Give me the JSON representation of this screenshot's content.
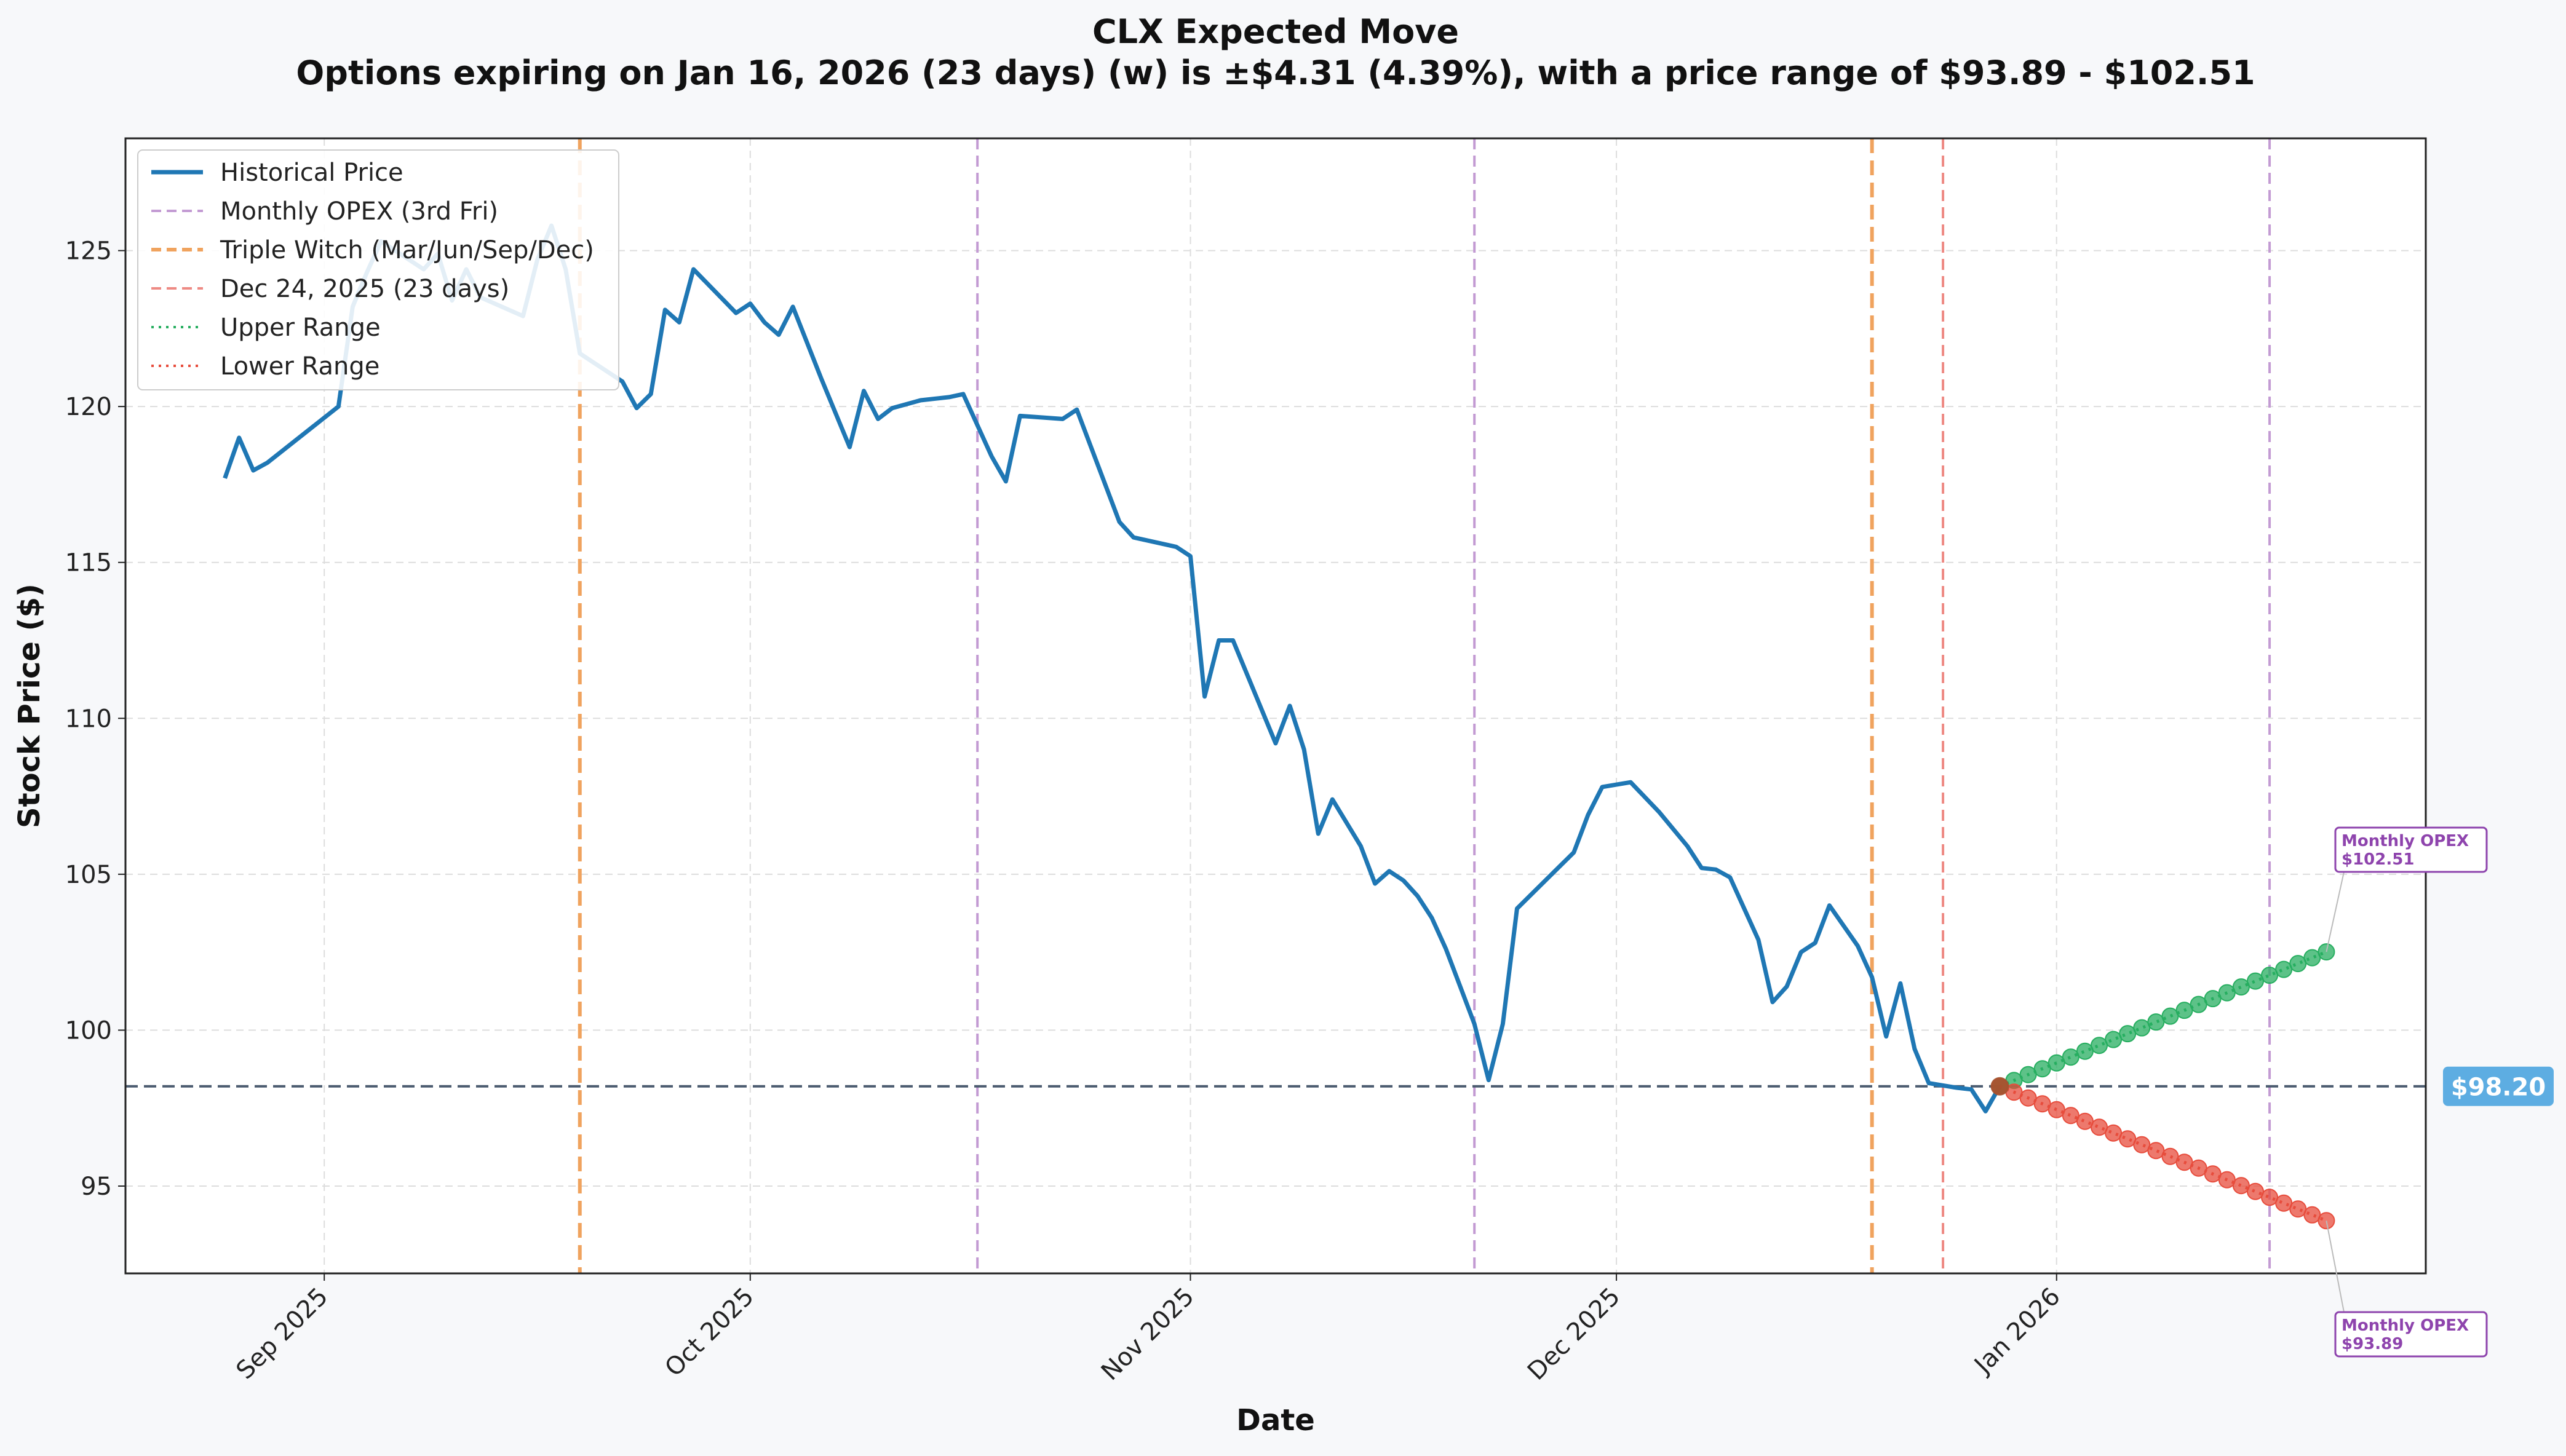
{
  "chart_data": {
    "type": "line",
    "title": "CLX Expected Move",
    "subtitle": "Options expiring on Jan 16, 2026 (23 days) (w) is ±$4.31 (4.39%), with a price range of $93.89 - $102.51",
    "xlabel": "Date",
    "ylabel": "Stock Price ($)",
    "xlim": [
      "2025-08-18",
      "2026-01-27"
    ],
    "ylim": [
      92.2,
      128.6
    ],
    "x_ticks": [
      {
        "date": "2025-09-01",
        "label": "Sep 2025"
      },
      {
        "date": "2025-10-01",
        "label": "Oct 2025"
      },
      {
        "date": "2025-11-01",
        "label": "Nov 2025"
      },
      {
        "date": "2025-12-01",
        "label": "Dec 2025"
      },
      {
        "date": "2026-01-01",
        "label": "Jan 2026"
      }
    ],
    "y_ticks": [
      95,
      100,
      105,
      110,
      115,
      120,
      125
    ],
    "grid": true,
    "legend_position": "upper-left",
    "legend": [
      {
        "label": "Historical Price",
        "style": "solid",
        "color": "#1f77b4"
      },
      {
        "label": "Monthly OPEX (3rd Fri)",
        "style": "dashed",
        "color": "#c39bd3"
      },
      {
        "label": "Triple Witch (Mar/Jun/Sep/Dec)",
        "style": "dashed",
        "color": "#f0a35e"
      },
      {
        "label": "Dec 24, 2025 (23 days)",
        "style": "dashed",
        "color": "#ee8a84"
      },
      {
        "label": "Upper Range",
        "style": "dotted",
        "color": "#27ae60"
      },
      {
        "label": "Lower Range",
        "style": "dotted",
        "color": "#e74c3c"
      }
    ],
    "series": [
      {
        "name": "Historical Price",
        "color": "#1f77b4",
        "points": [
          {
            "x": "2025-08-25",
            "y": 117.7
          },
          {
            "x": "2025-08-26",
            "y": 119.0
          },
          {
            "x": "2025-08-27",
            "y": 117.95
          },
          {
            "x": "2025-08-28",
            "y": 118.2
          },
          {
            "x": "2025-09-02",
            "y": 120.0
          },
          {
            "x": "2025-09-03",
            "y": 123.2
          },
          {
            "x": "2025-09-04",
            "y": 124.3
          },
          {
            "x": "2025-09-05",
            "y": 125.3
          },
          {
            "x": "2025-09-08",
            "y": 124.4
          },
          {
            "x": "2025-09-09",
            "y": 124.9
          },
          {
            "x": "2025-09-10",
            "y": 123.4
          },
          {
            "x": "2025-09-11",
            "y": 124.4
          },
          {
            "x": "2025-09-12",
            "y": 123.5
          },
          {
            "x": "2025-09-15",
            "y": 122.9
          },
          {
            "x": "2025-09-16",
            "y": 124.7
          },
          {
            "x": "2025-09-17",
            "y": 125.8
          },
          {
            "x": "2025-09-18",
            "y": 124.4
          },
          {
            "x": "2025-09-19",
            "y": 121.7
          },
          {
            "x": "2025-09-22",
            "y": 120.8
          },
          {
            "x": "2025-09-23",
            "y": 119.95
          },
          {
            "x": "2025-09-24",
            "y": 120.4
          },
          {
            "x": "2025-09-25",
            "y": 123.1
          },
          {
            "x": "2025-09-26",
            "y": 122.7
          },
          {
            "x": "2025-09-27",
            "y": 124.4
          },
          {
            "x": "2025-09-30",
            "y": 123.0
          },
          {
            "x": "2025-10-01",
            "y": 123.3
          },
          {
            "x": "2025-10-02",
            "y": 122.7
          },
          {
            "x": "2025-10-03",
            "y": 122.3
          },
          {
            "x": "2025-10-04",
            "y": 123.2
          },
          {
            "x": "2025-10-06",
            "y": 120.9
          },
          {
            "x": "2025-10-07",
            "y": 119.8
          },
          {
            "x": "2025-10-08",
            "y": 118.7
          },
          {
            "x": "2025-10-09",
            "y": 120.5
          },
          {
            "x": "2025-10-10",
            "y": 119.6
          },
          {
            "x": "2025-10-11",
            "y": 119.95
          },
          {
            "x": "2025-10-13",
            "y": 120.2
          },
          {
            "x": "2025-10-15",
            "y": 120.3
          },
          {
            "x": "2025-10-16",
            "y": 120.4
          },
          {
            "x": "2025-10-18",
            "y": 118.4
          },
          {
            "x": "2025-10-19",
            "y": 117.6
          },
          {
            "x": "2025-10-20",
            "y": 119.7
          },
          {
            "x": "2025-10-23",
            "y": 119.6
          },
          {
            "x": "2025-10-24",
            "y": 119.9
          },
          {
            "x": "2025-10-27",
            "y": 116.3
          },
          {
            "x": "2025-10-28",
            "y": 115.8
          },
          {
            "x": "2025-10-31",
            "y": 115.5
          },
          {
            "x": "2025-11-01",
            "y": 115.2
          },
          {
            "x": "2025-11-02",
            "y": 110.7
          },
          {
            "x": "2025-11-03",
            "y": 112.5
          },
          {
            "x": "2025-11-04",
            "y": 112.5
          },
          {
            "x": "2025-11-06",
            "y": 110.3
          },
          {
            "x": "2025-11-07",
            "y": 109.2
          },
          {
            "x": "2025-11-08",
            "y": 110.4
          },
          {
            "x": "2025-11-09",
            "y": 109.0
          },
          {
            "x": "2025-11-10",
            "y": 106.3
          },
          {
            "x": "2025-11-11",
            "y": 107.4
          },
          {
            "x": "2025-11-13",
            "y": 105.9
          },
          {
            "x": "2025-11-14",
            "y": 104.7
          },
          {
            "x": "2025-11-15",
            "y": 105.1
          },
          {
            "x": "2025-11-16",
            "y": 104.8
          },
          {
            "x": "2025-11-17",
            "y": 104.3
          },
          {
            "x": "2025-11-18",
            "y": 103.6
          },
          {
            "x": "2025-11-19",
            "y": 102.6
          },
          {
            "x": "2025-11-20",
            "y": 101.4
          },
          {
            "x": "2025-11-21",
            "y": 100.2
          },
          {
            "x": "2025-11-22",
            "y": 98.4
          },
          {
            "x": "2025-11-23",
            "y": 100.2
          },
          {
            "x": "2025-11-24",
            "y": 103.9
          },
          {
            "x": "2025-11-26",
            "y": 104.8
          },
          {
            "x": "2025-11-28",
            "y": 105.7
          },
          {
            "x": "2025-11-29",
            "y": 106.9
          },
          {
            "x": "2025-11-30",
            "y": 107.8
          },
          {
            "x": "2025-12-02",
            "y": 107.95
          },
          {
            "x": "2025-12-04",
            "y": 107.0
          },
          {
            "x": "2025-12-06",
            "y": 105.9
          },
          {
            "x": "2025-12-07",
            "y": 105.2
          },
          {
            "x": "2025-12-08",
            "y": 105.15
          },
          {
            "x": "2025-12-09",
            "y": 104.9
          },
          {
            "x": "2025-12-11",
            "y": 102.9
          },
          {
            "x": "2025-12-12",
            "y": 100.9
          },
          {
            "x": "2025-12-13",
            "y": 101.4
          },
          {
            "x": "2025-12-14",
            "y": 102.5
          },
          {
            "x": "2025-12-15",
            "y": 102.8
          },
          {
            "x": "2025-12-16",
            "y": 104.0
          },
          {
            "x": "2025-12-18",
            "y": 102.7
          },
          {
            "x": "2025-12-19",
            "y": 101.7
          },
          {
            "x": "2025-12-20",
            "y": 99.8
          },
          {
            "x": "2025-12-21",
            "y": 101.5
          },
          {
            "x": "2025-12-22",
            "y": 99.4
          },
          {
            "x": "2025-12-23",
            "y": 98.3
          },
          {
            "x": "2025-12-25",
            "y": 98.15
          },
          {
            "x": "2025-12-26",
            "y": 98.1
          },
          {
            "x": "2025-12-27",
            "y": 97.4
          },
          {
            "x": "2025-12-28",
            "y": 98.2
          }
        ]
      },
      {
        "name": "Upper Range",
        "color": "#27ae60",
        "start": {
          "x": "2025-12-28",
          "y": 98.2
        },
        "end": {
          "x": "2026-01-20",
          "y": 102.51
        },
        "points_count": 24
      },
      {
        "name": "Lower Range",
        "color": "#e74c3c",
        "start": {
          "x": "2025-12-28",
          "y": 98.2
        },
        "end": {
          "x": "2026-01-20",
          "y": 93.89
        },
        "points_count": 24
      }
    ],
    "vertical_lines": [
      {
        "x": "2025-09-19",
        "type": "Triple Witch",
        "color": "#f0a35e"
      },
      {
        "x": "2025-10-17",
        "type": "Monthly OPEX",
        "color": "#c39bd3"
      },
      {
        "x": "2025-11-21",
        "type": "Monthly OPEX",
        "color": "#c39bd3"
      },
      {
        "x": "2025-12-19",
        "type": "Triple Witch",
        "color": "#f0a35e"
      },
      {
        "x": "2025-12-24",
        "type": "Expiry marker",
        "color": "#ee8a84"
      },
      {
        "x": "2026-01-16",
        "type": "Monthly OPEX",
        "color": "#c39bd3"
      }
    ],
    "current_price": {
      "value": 98.2,
      "label": "$98.20",
      "color": "#5dade2"
    },
    "annotations": [
      {
        "title": "Monthly OPEX",
        "value": "$102.51",
        "target_y": 102.51,
        "color": "#8e44ad"
      },
      {
        "title": "Monthly OPEX",
        "value": "$93.89",
        "target_y": 93.89,
        "color": "#8e44ad"
      }
    ]
  }
}
